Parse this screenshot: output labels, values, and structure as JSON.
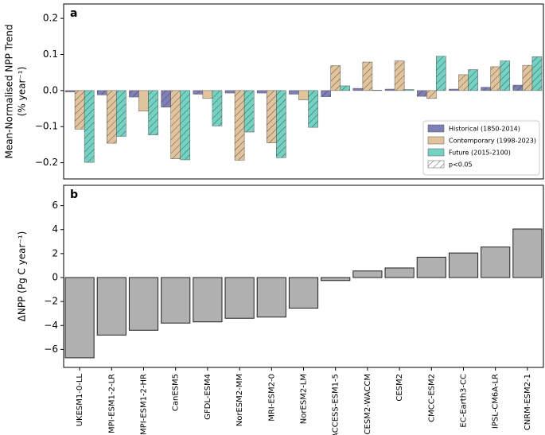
{
  "chart_data": [
    {
      "type": "grouped-bar",
      "panel_label": "a",
      "ylabel": "Mean-Normalised NPP Trend",
      "ylabel_unit": "(% year⁻¹)",
      "ylim": [
        -0.245,
        0.24
      ],
      "yticks": [
        {
          "value": -0.2,
          "label": "−0.2"
        },
        {
          "value": -0.1,
          "label": "−0.1"
        },
        {
          "value": 0,
          "label": "0.0"
        },
        0.1,
        0.2
      ],
      "legend": "lower right",
      "hatch_label": "p<0.05",
      "series": [
        {
          "name": "Historical (1850-2014)",
          "color": "#7f7fb8",
          "values": [
            -0.004,
            -0.012,
            -0.018,
            -0.046,
            -0.01,
            -0.007,
            -0.007,
            -0.01,
            -0.017,
            0.006,
            0.004,
            -0.016,
            0.004,
            0.009,
            0.015
          ],
          "significant": [
            false,
            true,
            true,
            true,
            true,
            false,
            false,
            false,
            true,
            false,
            false,
            true,
            false,
            true,
            true
          ]
        },
        {
          "name": "Contemporary (1998-2023)",
          "color": "#e2c49c",
          "values": [
            -0.107,
            -0.146,
            -0.057,
            -0.189,
            -0.022,
            -0.193,
            -0.145,
            -0.026,
            0.069,
            0.079,
            0.082,
            -0.022,
            0.044,
            0.066,
            0.07
          ],
          "significant": [
            true,
            true,
            false,
            true,
            false,
            true,
            true,
            false,
            true,
            true,
            true,
            true,
            true,
            true,
            true
          ]
        },
        {
          "name": "Future (2015-2100)",
          "color": "#72d3c2",
          "values": [
            -0.199,
            -0.127,
            -0.123,
            -0.192,
            -0.098,
            -0.115,
            -0.186,
            -0.102,
            0.013,
            0.001,
            0.003,
            0.095,
            0.058,
            0.082,
            0.094
          ],
          "significant": [
            true,
            true,
            true,
            true,
            true,
            true,
            true,
            true,
            true,
            false,
            false,
            true,
            true,
            true,
            true
          ]
        }
      ]
    },
    {
      "type": "bar",
      "panel_label": "b",
      "ylabel": "ΔNPP (Pg C year⁻¹)",
      "ylim": [
        -7.5,
        7.7
      ],
      "yticks": [
        {
          "value": -6,
          "label": "−6"
        },
        {
          "value": -4,
          "label": "−4"
        },
        {
          "value": -2,
          "label": "−2"
        },
        0,
        2,
        4,
        6
      ],
      "color": "#b0b0b0",
      "categories": [
        "UKESM1-0-LL",
        "MPI-ESM1-2-LR",
        "MPI-ESM1-2-HR",
        "CanESM5",
        "GFDL-ESM4",
        "NorESM2-MM",
        "MRI-ESM2-0",
        "NorESM2-LM",
        "ACCESS-ESM1-5",
        "CESM2-WACCM",
        "CESM2",
        "CMCC-ESM2",
        "EC-Earth3-CC",
        "IPSL-CM6A-LR",
        "CNRM-ESM2-1"
      ],
      "values": [
        -6.7,
        -4.8,
        -4.4,
        -3.8,
        -3.7,
        -3.4,
        -3.3,
        -2.55,
        -0.25,
        0.55,
        0.8,
        1.7,
        2.05,
        2.55,
        4.05
      ]
    }
  ]
}
